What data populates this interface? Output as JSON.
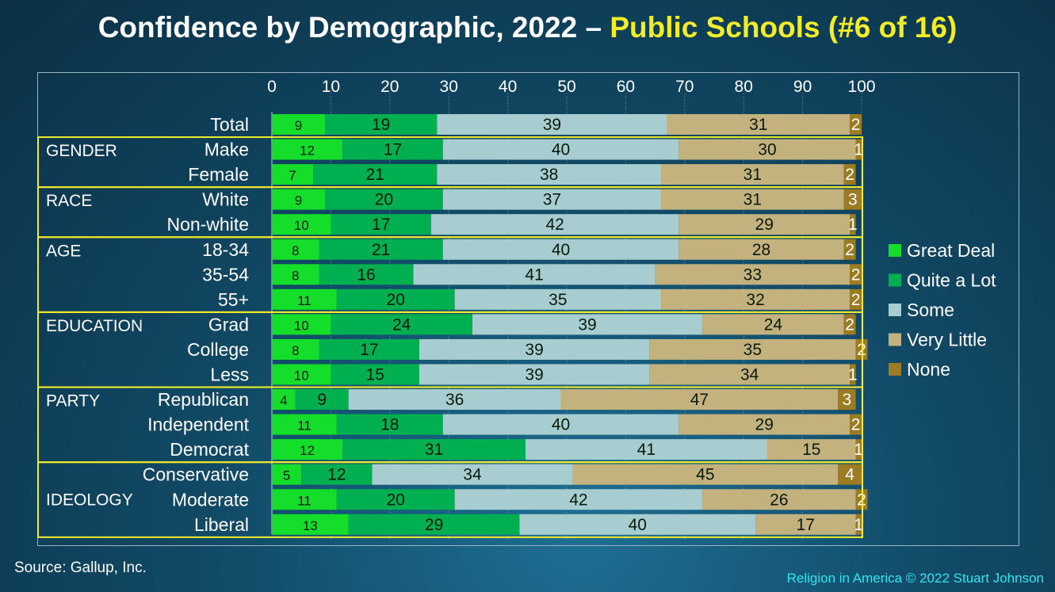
{
  "title": {
    "main": "Confidence by Demographic, 2022 – ",
    "highlight": "Public Schools (#6 of 16)"
  },
  "source": "Source: Gallup, Inc.",
  "credit": "Religion in America © 2022 Stuart Johnson",
  "chart_data": {
    "type": "bar",
    "orientation": "horizontal",
    "stacked": true,
    "xlim": [
      0,
      100
    ],
    "x_ticks": [
      0,
      10,
      20,
      30,
      40,
      50,
      60,
      70,
      80,
      90,
      100
    ],
    "grid": true,
    "legend_position": "right",
    "categories": [
      "Total",
      "Make",
      "Female",
      "White",
      "Non-white",
      "18-34",
      "35-54",
      "55+",
      "Grad",
      "College",
      "Less",
      "Republican",
      "Independent",
      "Democrat",
      "Conservative",
      "Moderate",
      "Liberal"
    ],
    "groups": [
      {
        "label": "GENDER",
        "rows": [
          "Make",
          "Female"
        ]
      },
      {
        "label": "RACE",
        "rows": [
          "White",
          "Non-white"
        ]
      },
      {
        "label": "AGE",
        "rows": [
          "18-34",
          "35-54",
          "55+"
        ]
      },
      {
        "label": "EDUCATION",
        "rows": [
          "Grad",
          "College",
          "Less"
        ]
      },
      {
        "label": "PARTY",
        "rows": [
          "Republican",
          "Independent",
          "Democrat"
        ]
      },
      {
        "label": "IDEOLOGY",
        "rows": [
          "Conservative",
          "Moderate",
          "Liberal"
        ]
      }
    ],
    "series": [
      {
        "name": "Great Deal",
        "color": "#14de2a",
        "values": [
          9,
          12,
          7,
          9,
          10,
          8,
          8,
          11,
          10,
          8,
          10,
          4,
          11,
          12,
          5,
          11,
          13
        ]
      },
      {
        "name": "Quite a Lot",
        "color": "#00b050",
        "values": [
          19,
          17,
          21,
          20,
          17,
          21,
          16,
          20,
          24,
          17,
          15,
          9,
          18,
          31,
          12,
          20,
          29
        ]
      },
      {
        "name": "Some",
        "color": "#a7cdd1",
        "values": [
          39,
          40,
          38,
          37,
          42,
          40,
          41,
          35,
          39,
          39,
          39,
          36,
          40,
          41,
          34,
          42,
          40
        ]
      },
      {
        "name": "Very Little",
        "color": "#c4b27e",
        "values": [
          31,
          30,
          31,
          31,
          29,
          28,
          33,
          32,
          24,
          35,
          34,
          47,
          29,
          15,
          45,
          26,
          17
        ]
      },
      {
        "name": "None",
        "color": "#9c7b22",
        "values": [
          2,
          1,
          2,
          3,
          1,
          2,
          2,
          2,
          2,
          2,
          1,
          3,
          2,
          1,
          4,
          2,
          1
        ]
      }
    ],
    "label_colors": {
      "Great Deal": "#0a1a0a",
      "Quite a Lot": "#0a1a0a",
      "Some": "#0a1a0a",
      "Very Little": "#0a1a0a",
      "None": "#ffffff"
    },
    "group_box_color": "#f2ec2a"
  }
}
